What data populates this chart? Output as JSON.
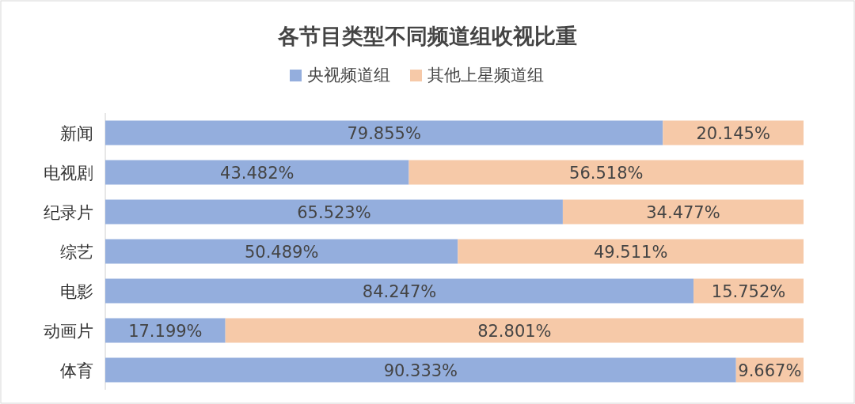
{
  "chart_data": {
    "type": "bar",
    "orientation": "horizontal",
    "stacked": true,
    "title": "各节目类型不同频道组收视比重",
    "legend": "top",
    "categories": [
      "新闻",
      "电视剧",
      "纪录片",
      "综艺",
      "电影",
      "动画片",
      "体育"
    ],
    "xlim": [
      0,
      100
    ],
    "tick_labels": "y",
    "series": [
      {
        "name": "央视频道组",
        "color": "#94aedd",
        "values": [
          79.855,
          43.482,
          65.523,
          50.489,
          84.247,
          17.199,
          90.333
        ],
        "value_labels": [
          "79.855%",
          "43.482%",
          "65.523%",
          "50.489%",
          "84.247%",
          "17.199%",
          "90.333%"
        ]
      },
      {
        "name": "其他上星频道组",
        "color": "#f6c9a8",
        "values": [
          20.145,
          56.518,
          34.477,
          49.511,
          15.752,
          82.801,
          9.667
        ],
        "value_labels": [
          "20.145%",
          "56.518%",
          "34.477%",
          "49.511%",
          "15.752%",
          "82.801%",
          "9.667%"
        ]
      }
    ]
  }
}
